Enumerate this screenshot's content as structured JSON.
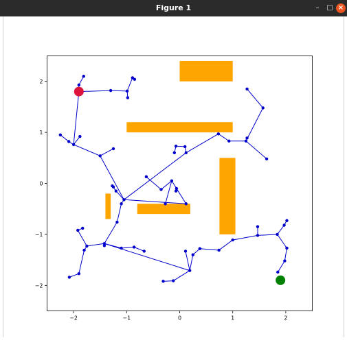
{
  "window": {
    "title": "Figure 1",
    "minimize_glyph": "–",
    "maximize_glyph": "□",
    "close_glyph": "×"
  },
  "chart_data": {
    "type": "scatter",
    "title": "",
    "xlabel": "",
    "ylabel": "",
    "xlim": [
      -2.5,
      2.5
    ],
    "ylim": [
      -2.5,
      2.5
    ],
    "x_ticks": [
      -2,
      -1,
      0,
      1,
      2
    ],
    "y_ticks": [
      -2,
      -1,
      0,
      1,
      2
    ],
    "x_tick_labels": [
      "−2",
      "−1",
      "0",
      "1",
      "2"
    ],
    "y_tick_labels": [
      "−2",
      "−1",
      "0",
      "1",
      "2"
    ],
    "grid": false,
    "colors": {
      "tree": "#0000cc",
      "obstacle": "#ffa500",
      "start": "#dc143c",
      "goal": "#008000"
    },
    "obstacles": [
      {
        "x0": 0.0,
        "x1": 1.0,
        "y0": 2.0,
        "y1": 2.4
      },
      {
        "x0": -1.0,
        "x1": 1.0,
        "y0": 1.0,
        "y1": 1.2
      },
      {
        "x0": 0.75,
        "x1": 1.05,
        "y0": -1.0,
        "y1": 0.5
      },
      {
        "x0": -1.4,
        "x1": -1.3,
        "y0": -0.7,
        "y1": -0.2
      },
      {
        "x0": -0.8,
        "x1": 0.2,
        "y0": -0.6,
        "y1": -0.4
      }
    ],
    "start": {
      "x": -1.9,
      "y": 1.8
    },
    "goal": {
      "x": 1.9,
      "y": -1.9
    },
    "nodes": [
      {
        "x": -1.9,
        "y": 1.8
      },
      {
        "x": -1.9,
        "y": 1.93
      },
      {
        "x": -1.81,
        "y": 2.1
      },
      {
        "x": -1.3,
        "y": 1.82
      },
      {
        "x": -0.99,
        "y": 1.81
      },
      {
        "x": -0.89,
        "y": 2.07
      },
      {
        "x": -0.85,
        "y": 2.04
      },
      {
        "x": -0.98,
        "y": 1.68
      },
      {
        "x": -2.0,
        "y": 0.76
      },
      {
        "x": -2.09,
        "y": 0.82
      },
      {
        "x": -2.25,
        "y": 0.95
      },
      {
        "x": -1.88,
        "y": 0.92
      },
      {
        "x": -1.5,
        "y": 0.54
      },
      {
        "x": -1.25,
        "y": 0.68
      },
      {
        "x": -1.05,
        "y": -0.32
      },
      {
        "x": -1.2,
        "y": -0.15
      },
      {
        "x": -1.27,
        "y": -0.05
      },
      {
        "x": -1.25,
        "y": -0.07
      },
      {
        "x": -1.1,
        "y": -0.4
      },
      {
        "x": -1.18,
        "y": -0.76
      },
      {
        "x": -1.42,
        "y": -1.18
      },
      {
        "x": -1.42,
        "y": -1.22
      },
      {
        "x": -1.1,
        "y": -1.27
      },
      {
        "x": -0.86,
        "y": -1.25
      },
      {
        "x": -0.67,
        "y": -1.33
      },
      {
        "x": -1.75,
        "y": -1.23
      },
      {
        "x": -1.8,
        "y": -1.31
      },
      {
        "x": -1.92,
        "y": -0.92
      },
      {
        "x": -1.83,
        "y": -0.88
      },
      {
        "x": -1.9,
        "y": -1.77
      },
      {
        "x": -2.08,
        "y": -1.84
      },
      {
        "x": 0.19,
        "y": -1.71
      },
      {
        "x": 0.11,
        "y": -1.33
      },
      {
        "x": 0.25,
        "y": -1.4
      },
      {
        "x": 0.38,
        "y": -1.28
      },
      {
        "x": 0.74,
        "y": -1.31
      },
      {
        "x": 1.0,
        "y": -1.11
      },
      {
        "x": 1.47,
        "y": -1.02
      },
      {
        "x": 1.47,
        "y": -0.85
      },
      {
        "x": 1.84,
        "y": -1.0
      },
      {
        "x": 1.97,
        "y": -0.82
      },
      {
        "x": 2.02,
        "y": -0.73
      },
      {
        "x": 2.02,
        "y": -1.27
      },
      {
        "x": 1.98,
        "y": -1.52
      },
      {
        "x": 1.85,
        "y": -1.74
      },
      {
        "x": 0.12,
        "y": -0.4
      },
      {
        "x": -0.06,
        "y": -0.1
      },
      {
        "x": -0.15,
        "y": 0.05
      },
      {
        "x": -0.35,
        "y": -0.12
      },
      {
        "x": -0.63,
        "y": 0.13
      },
      {
        "x": -0.27,
        "y": -0.4
      },
      {
        "x": -0.07,
        "y": -0.15
      },
      {
        "x": -0.31,
        "y": -1.92
      },
      {
        "x": -0.12,
        "y": -1.91
      },
      {
        "x": 0.12,
        "y": 0.6
      },
      {
        "x": 0.1,
        "y": 0.72
      },
      {
        "x": -0.07,
        "y": 0.73
      },
      {
        "x": -0.1,
        "y": 0.6
      },
      {
        "x": 0.73,
        "y": 0.97
      },
      {
        "x": 0.93,
        "y": 0.83
      },
      {
        "x": 1.25,
        "y": 0.83
      },
      {
        "x": 1.27,
        "y": 0.89
      },
      {
        "x": 1.64,
        "y": 0.48
      },
      {
        "x": 1.57,
        "y": 1.48
      },
      {
        "x": 1.27,
        "y": 1.85
      }
    ],
    "edges": [
      [
        0,
        1
      ],
      [
        1,
        2
      ],
      [
        0,
        3
      ],
      [
        3,
        4
      ],
      [
        4,
        5
      ],
      [
        5,
        6
      ],
      [
        4,
        7
      ],
      [
        0,
        8
      ],
      [
        8,
        9
      ],
      [
        9,
        10
      ],
      [
        8,
        11
      ],
      [
        8,
        12
      ],
      [
        12,
        13
      ],
      [
        12,
        14
      ],
      [
        14,
        15
      ],
      [
        15,
        16
      ],
      [
        16,
        17
      ],
      [
        14,
        18
      ],
      [
        18,
        19
      ],
      [
        19,
        20
      ],
      [
        20,
        21
      ],
      [
        20,
        22
      ],
      [
        22,
        23
      ],
      [
        23,
        24
      ],
      [
        20,
        25
      ],
      [
        25,
        26
      ],
      [
        25,
        27
      ],
      [
        27,
        28
      ],
      [
        26,
        29
      ],
      [
        29,
        30
      ],
      [
        20,
        31
      ],
      [
        31,
        32
      ],
      [
        31,
        33
      ],
      [
        33,
        34
      ],
      [
        34,
        35
      ],
      [
        35,
        36
      ],
      [
        36,
        37
      ],
      [
        37,
        38
      ],
      [
        37,
        39
      ],
      [
        39,
        40
      ],
      [
        40,
        41
      ],
      [
        39,
        42
      ],
      [
        42,
        43
      ],
      [
        43,
        44
      ],
      [
        14,
        45
      ],
      [
        45,
        46
      ],
      [
        46,
        47
      ],
      [
        47,
        48
      ],
      [
        48,
        49
      ],
      [
        47,
        50
      ],
      [
        46,
        51
      ],
      [
        31,
        53
      ],
      [
        53,
        52
      ],
      [
        14,
        54
      ],
      [
        54,
        55
      ],
      [
        55,
        56
      ],
      [
        56,
        57
      ],
      [
        54,
        58
      ],
      [
        58,
        59
      ],
      [
        59,
        60
      ],
      [
        60,
        61
      ],
      [
        60,
        62
      ],
      [
        60,
        63
      ],
      [
        63,
        64
      ]
    ]
  }
}
